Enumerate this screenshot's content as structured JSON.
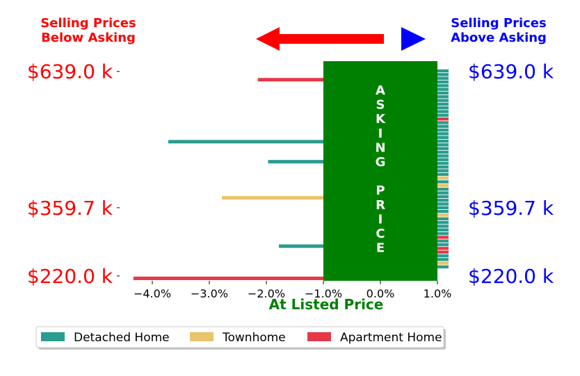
{
  "headers": {
    "left": [
      "Selling Prices",
      "Below Asking"
    ],
    "right": [
      "Selling Prices",
      "Above Asking"
    ]
  },
  "colors": {
    "below": "#ff0000",
    "above": "#0000ff",
    "band": "#008000",
    "xlabel": "#008000",
    "arrow_left": "#ff0000",
    "arrow_right": "#0000ff"
  },
  "asking_band_text": "ASKING PRICE",
  "chart_data": {
    "type": "bar",
    "orientation": "horizontal",
    "xlabel": "At Listed Price",
    "x_ticks": [
      "−4.0%",
      "−3.0%",
      "−2.0%",
      "−1.0%",
      "0.0%",
      "1.0%"
    ],
    "x_range_pct": [
      -4.35,
      1.0
    ],
    "asking_band_pct": [
      -1.0,
      1.0
    ],
    "price_ticks_left": [
      "$639.0 k",
      "$359.7 k",
      "$220.0 k"
    ],
    "price_ticks_right": [
      "$639.0 k",
      "$359.7 k",
      "$220.0 k"
    ],
    "price_tick_values_k": [
      639.0,
      359.7,
      220.0
    ],
    "y_range_k": [
      210,
      660
    ],
    "legend": [
      {
        "name": "Detached Home",
        "color": "#2a9d8f"
      },
      {
        "name": "Townhome",
        "color": "#e9c46a"
      },
      {
        "name": "Apartment Home",
        "color": "#e63946"
      }
    ],
    "legend_placement": "bottom",
    "below_asking_bars": [
      {
        "price_k": 622,
        "pct": -2.15,
        "type": "Apartment Home"
      },
      {
        "price_k": 495,
        "pct": -3.72,
        "type": "Detached Home"
      },
      {
        "price_k": 454,
        "pct": -1.97,
        "type": "Detached Home"
      },
      {
        "price_k": 380,
        "pct": -2.78,
        "type": "Townhome"
      },
      {
        "price_k": 281,
        "pct": -1.78,
        "type": "Detached Home"
      },
      {
        "price_k": 215,
        "pct": -4.33,
        "type": "Apartment Home"
      }
    ],
    "above_asking_strip": [
      "Detached Home",
      "Detached Home",
      "Detached Home",
      "Detached Home",
      "Detached Home",
      "Detached Home",
      "Detached Home",
      "Detached Home",
      "Detached Home",
      "Detached Home",
      "Detached Home",
      "Detached Home",
      "Detached Home",
      "Apartment Home",
      "Detached Home",
      "Detached Home",
      "Detached Home",
      "Detached Home",
      "Detached Home",
      "Detached Home",
      "Detached Home",
      "Detached Home",
      "Detached Home",
      "Detached Home",
      "Detached Home",
      "Detached Home",
      "Detached Home",
      "Detached Home",
      "Detached Home",
      "Townhome",
      "Detached Home",
      "Townhome",
      "Detached Home",
      "Detached Home",
      "Detached Home",
      "Detached Home",
      "Detached Home",
      "Detached Home",
      "Detached Home",
      "Townhome",
      "Detached Home",
      "Detached Home",
      "Detached Home",
      "Detached Home",
      "Detached Home",
      "Apartment Home",
      "Detached Home",
      "Detached Home",
      "Apartment Home",
      "Apartment Home",
      "Detached Home",
      "Detached Home",
      "Townhome",
      "Detached Home"
    ]
  }
}
